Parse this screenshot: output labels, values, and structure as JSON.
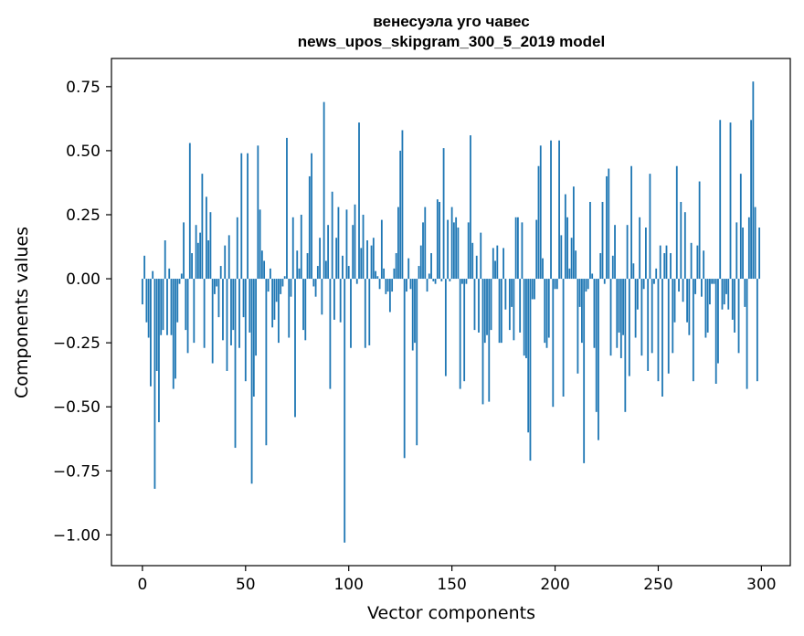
{
  "chart_data": {
    "type": "bar",
    "title": "венесуэла уго чавес",
    "subtitle": "news_upos_skipgram_300_5_2019 model",
    "xlabel": "Vector components",
    "ylabel": "Components values",
    "xlim": [
      -15,
      314
    ],
    "ylim": [
      -1.12,
      0.86
    ],
    "xticks": [
      0,
      50,
      100,
      150,
      200,
      250,
      300
    ],
    "xtick_labels": [
      "0",
      "50",
      "100",
      "150",
      "200",
      "250",
      "300"
    ],
    "yticks": [
      0.75,
      0.5,
      0.25,
      0.0,
      -0.25,
      -0.5,
      -0.75,
      -1.0
    ],
    "ytick_labels": [
      "0.75",
      "0.50",
      "0.25",
      "0.00",
      "−0.25",
      "−0.50",
      "−0.75",
      "−1.00"
    ],
    "bar_color": "#1f77b4",
    "x": [
      0,
      1,
      2,
      3,
      4,
      5,
      6,
      7,
      8,
      9,
      10,
      11,
      12,
      13,
      14,
      15,
      16,
      17,
      18,
      19,
      20,
      21,
      22,
      23,
      24,
      25,
      26,
      27,
      28,
      29,
      30,
      31,
      32,
      33,
      34,
      35,
      36,
      37,
      38,
      39,
      40,
      41,
      42,
      43,
      44,
      45,
      46,
      47,
      48,
      49,
      50,
      51,
      52,
      53,
      54,
      55,
      56,
      57,
      58,
      59,
      60,
      61,
      62,
      63,
      64,
      65,
      66,
      67,
      68,
      69,
      70,
      71,
      72,
      73,
      74,
      75,
      76,
      77,
      78,
      79,
      80,
      81,
      82,
      83,
      84,
      85,
      86,
      87,
      88,
      89,
      90,
      91,
      92,
      93,
      94,
      95,
      96,
      97,
      98,
      99,
      100,
      101,
      102,
      103,
      104,
      105,
      106,
      107,
      108,
      109,
      110,
      111,
      112,
      113,
      114,
      115,
      116,
      117,
      118,
      119,
      120,
      121,
      122,
      123,
      124,
      125,
      126,
      127,
      128,
      129,
      130,
      131,
      132,
      133,
      134,
      135,
      136,
      137,
      138,
      139,
      140,
      141,
      142,
      143,
      144,
      145,
      146,
      147,
      148,
      149,
      150,
      151,
      152,
      153,
      154,
      155,
      156,
      157,
      158,
      159,
      160,
      161,
      162,
      163,
      164,
      165,
      166,
      167,
      168,
      169,
      170,
      171,
      172,
      173,
      174,
      175,
      176,
      177,
      178,
      179,
      180,
      181,
      182,
      183,
      184,
      185,
      186,
      187,
      188,
      189,
      190,
      191,
      192,
      193,
      194,
      195,
      196,
      197,
      198,
      199,
      200,
      201,
      202,
      203,
      204,
      205,
      206,
      207,
      208,
      209,
      210,
      211,
      212,
      213,
      214,
      215,
      216,
      217,
      218,
      219,
      220,
      221,
      222,
      223,
      224,
      225,
      226,
      227,
      228,
      229,
      230,
      231,
      232,
      233,
      234,
      235,
      236,
      237,
      238,
      239,
      240,
      241,
      242,
      243,
      244,
      245,
      246,
      247,
      248,
      249,
      250,
      251,
      252,
      253,
      254,
      255,
      256,
      257,
      258,
      259,
      260,
      261,
      262,
      263,
      264,
      265,
      266,
      267,
      268,
      269,
      270,
      271,
      272,
      273,
      274,
      275,
      276,
      277,
      278,
      279,
      280,
      281,
      282,
      283,
      284,
      285,
      286,
      287,
      288,
      289,
      290,
      291,
      292,
      293,
      294,
      295,
      296,
      297,
      298,
      299
    ],
    "values": [
      -0.1,
      0.09,
      -0.17,
      -0.23,
      -0.42,
      0.03,
      -0.82,
      -0.36,
      -0.56,
      -0.22,
      -0.2,
      0.15,
      -0.22,
      0.04,
      -0.22,
      -0.43,
      -0.39,
      -0.17,
      -0.02,
      0.02,
      0.22,
      -0.2,
      -0.29,
      0.53,
      0.1,
      -0.25,
      0.21,
      0.14,
      0.18,
      0.41,
      -0.27,
      0.32,
      0.15,
      0.26,
      -0.33,
      -0.06,
      -0.03,
      -0.15,
      0.05,
      -0.24,
      0.13,
      -0.36,
      0.17,
      -0.26,
      -0.2,
      -0.66,
      0.24,
      -0.27,
      0.49,
      -0.15,
      -0.4,
      0.49,
      -0.21,
      -0.8,
      -0.46,
      -0.3,
      0.52,
      0.27,
      0.11,
      0.07,
      -0.65,
      -0.05,
      0.04,
      -0.19,
      -0.16,
      -0.09,
      -0.25,
      -0.06,
      -0.03,
      0.01,
      0.55,
      -0.23,
      -0.07,
      0.24,
      -0.54,
      0.11,
      0.04,
      0.25,
      -0.2,
      -0.24,
      0.1,
      0.4,
      0.49,
      -0.03,
      -0.07,
      0.05,
      0.16,
      -0.14,
      0.69,
      0.07,
      0.21,
      -0.43,
      0.34,
      -0.16,
      0.16,
      0.28,
      -0.17,
      0.09,
      -1.03,
      0.27,
      0.05,
      -0.27,
      0.21,
      0.29,
      -0.02,
      0.61,
      0.12,
      0.25,
      -0.27,
      0.15,
      -0.26,
      0.13,
      0.16,
      0.03,
      0.01,
      -0.04,
      0.23,
      0.04,
      -0.06,
      -0.05,
      -0.13,
      -0.05,
      0.04,
      0.1,
      0.28,
      0.5,
      0.58,
      -0.7,
      -0.05,
      0.08,
      -0.04,
      -0.28,
      -0.25,
      -0.65,
      0.05,
      0.13,
      0.22,
      0.28,
      -0.05,
      0.02,
      0.1,
      -0.01,
      -0.02,
      0.31,
      0.3,
      -0.01,
      0.51,
      -0.38,
      0.23,
      -0.01,
      0.28,
      0.22,
      0.24,
      0.2,
      -0.43,
      -0.02,
      -0.4,
      -0.02,
      0.22,
      0.56,
      0.14,
      -0.2,
      0.09,
      -0.21,
      0.18,
      -0.49,
      -0.25,
      -0.22,
      -0.48,
      -0.2,
      0.12,
      0.07,
      0.13,
      -0.25,
      -0.25,
      0.12,
      -0.12,
      0.0,
      -0.2,
      -0.11,
      -0.24,
      0.24,
      0.24,
      -0.21,
      0.22,
      -0.3,
      -0.31,
      -0.6,
      -0.71,
      -0.08,
      -0.08,
      0.23,
      0.44,
      0.52,
      0.08,
      -0.25,
      -0.27,
      -0.23,
      0.54,
      -0.5,
      -0.04,
      -0.04,
      0.54,
      0.17,
      -0.46,
      0.33,
      0.24,
      0.04,
      0.16,
      0.36,
      0.11,
      -0.37,
      -0.11,
      -0.25,
      -0.72,
      -0.05,
      -0.04,
      0.3,
      0.02,
      -0.27,
      -0.52,
      -0.63,
      0.1,
      0.3,
      -0.02,
      0.4,
      0.43,
      -0.3,
      0.09,
      0.21,
      -0.27,
      -0.21,
      -0.31,
      -0.22,
      -0.52,
      0.21,
      -0.38,
      0.44,
      0.06,
      -0.23,
      -0.12,
      0.24,
      -0.3,
      -0.04,
      0.2,
      -0.36,
      0.41,
      -0.29,
      -0.02,
      0.04,
      -0.4,
      0.13,
      -0.46,
      0.1,
      0.13,
      -0.37,
      0.1,
      -0.29,
      -0.17,
      0.44,
      -0.05,
      0.3,
      -0.09,
      0.26,
      -0.17,
      -0.22,
      0.14,
      -0.4,
      -0.06,
      0.13,
      0.38,
      -0.07,
      0.11,
      -0.23,
      -0.21,
      -0.1,
      -0.02,
      -0.02,
      -0.41,
      -0.33,
      0.62,
      -0.12,
      -0.1,
      -0.06,
      -0.12,
      0.61,
      -0.16,
      -0.21,
      0.22,
      -0.29,
      0.41,
      0.2,
      -0.11,
      -0.43,
      0.24,
      0.62,
      0.77,
      0.28,
      -0.4,
      0.2
    ]
  }
}
